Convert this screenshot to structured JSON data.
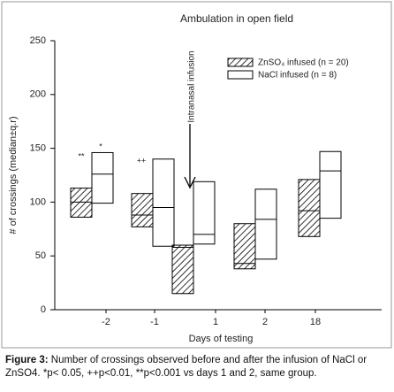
{
  "chart_data": {
    "type": "box",
    "title": "Ambulation in open field",
    "x_label": "Days of testing",
    "y_label": "# of crossings (median±q.r)",
    "categories": [
      "-2",
      "-1",
      "1",
      "2",
      "18"
    ],
    "series": [
      {
        "name": "ZnSO₄ infused (n = 20)",
        "color": "#000000",
        "hatch": true,
        "q1": [
          86,
          77,
          15,
          38,
          68
        ],
        "median": [
          100,
          88,
          58,
          43,
          92
        ],
        "q3": [
          113,
          108,
          60,
          80,
          121
        ]
      },
      {
        "name": "NaCl infused (n = 8)",
        "color": "#000000",
        "hatch": false,
        "q1": [
          99,
          59,
          61,
          47,
          85
        ],
        "median": [
          126,
          95,
          70,
          84,
          129
        ],
        "q3": [
          146,
          140,
          119,
          112,
          147
        ]
      }
    ],
    "ylim": [
      0,
      250
    ],
    "yticks": [
      0,
      50,
      100,
      150,
      200,
      250
    ],
    "annotations": [
      "**",
      "*",
      "++",
      "Intranasal infusion"
    ],
    "legend": "upper right"
  },
  "caption": {
    "label": "Figure 3:",
    "text": "Number of crossings observed before and after the infusion of NaCl or ZnSO4.  *p< 0.05, ++p<0.01, **p<0.001 vs days 1 and 2, same group."
  }
}
